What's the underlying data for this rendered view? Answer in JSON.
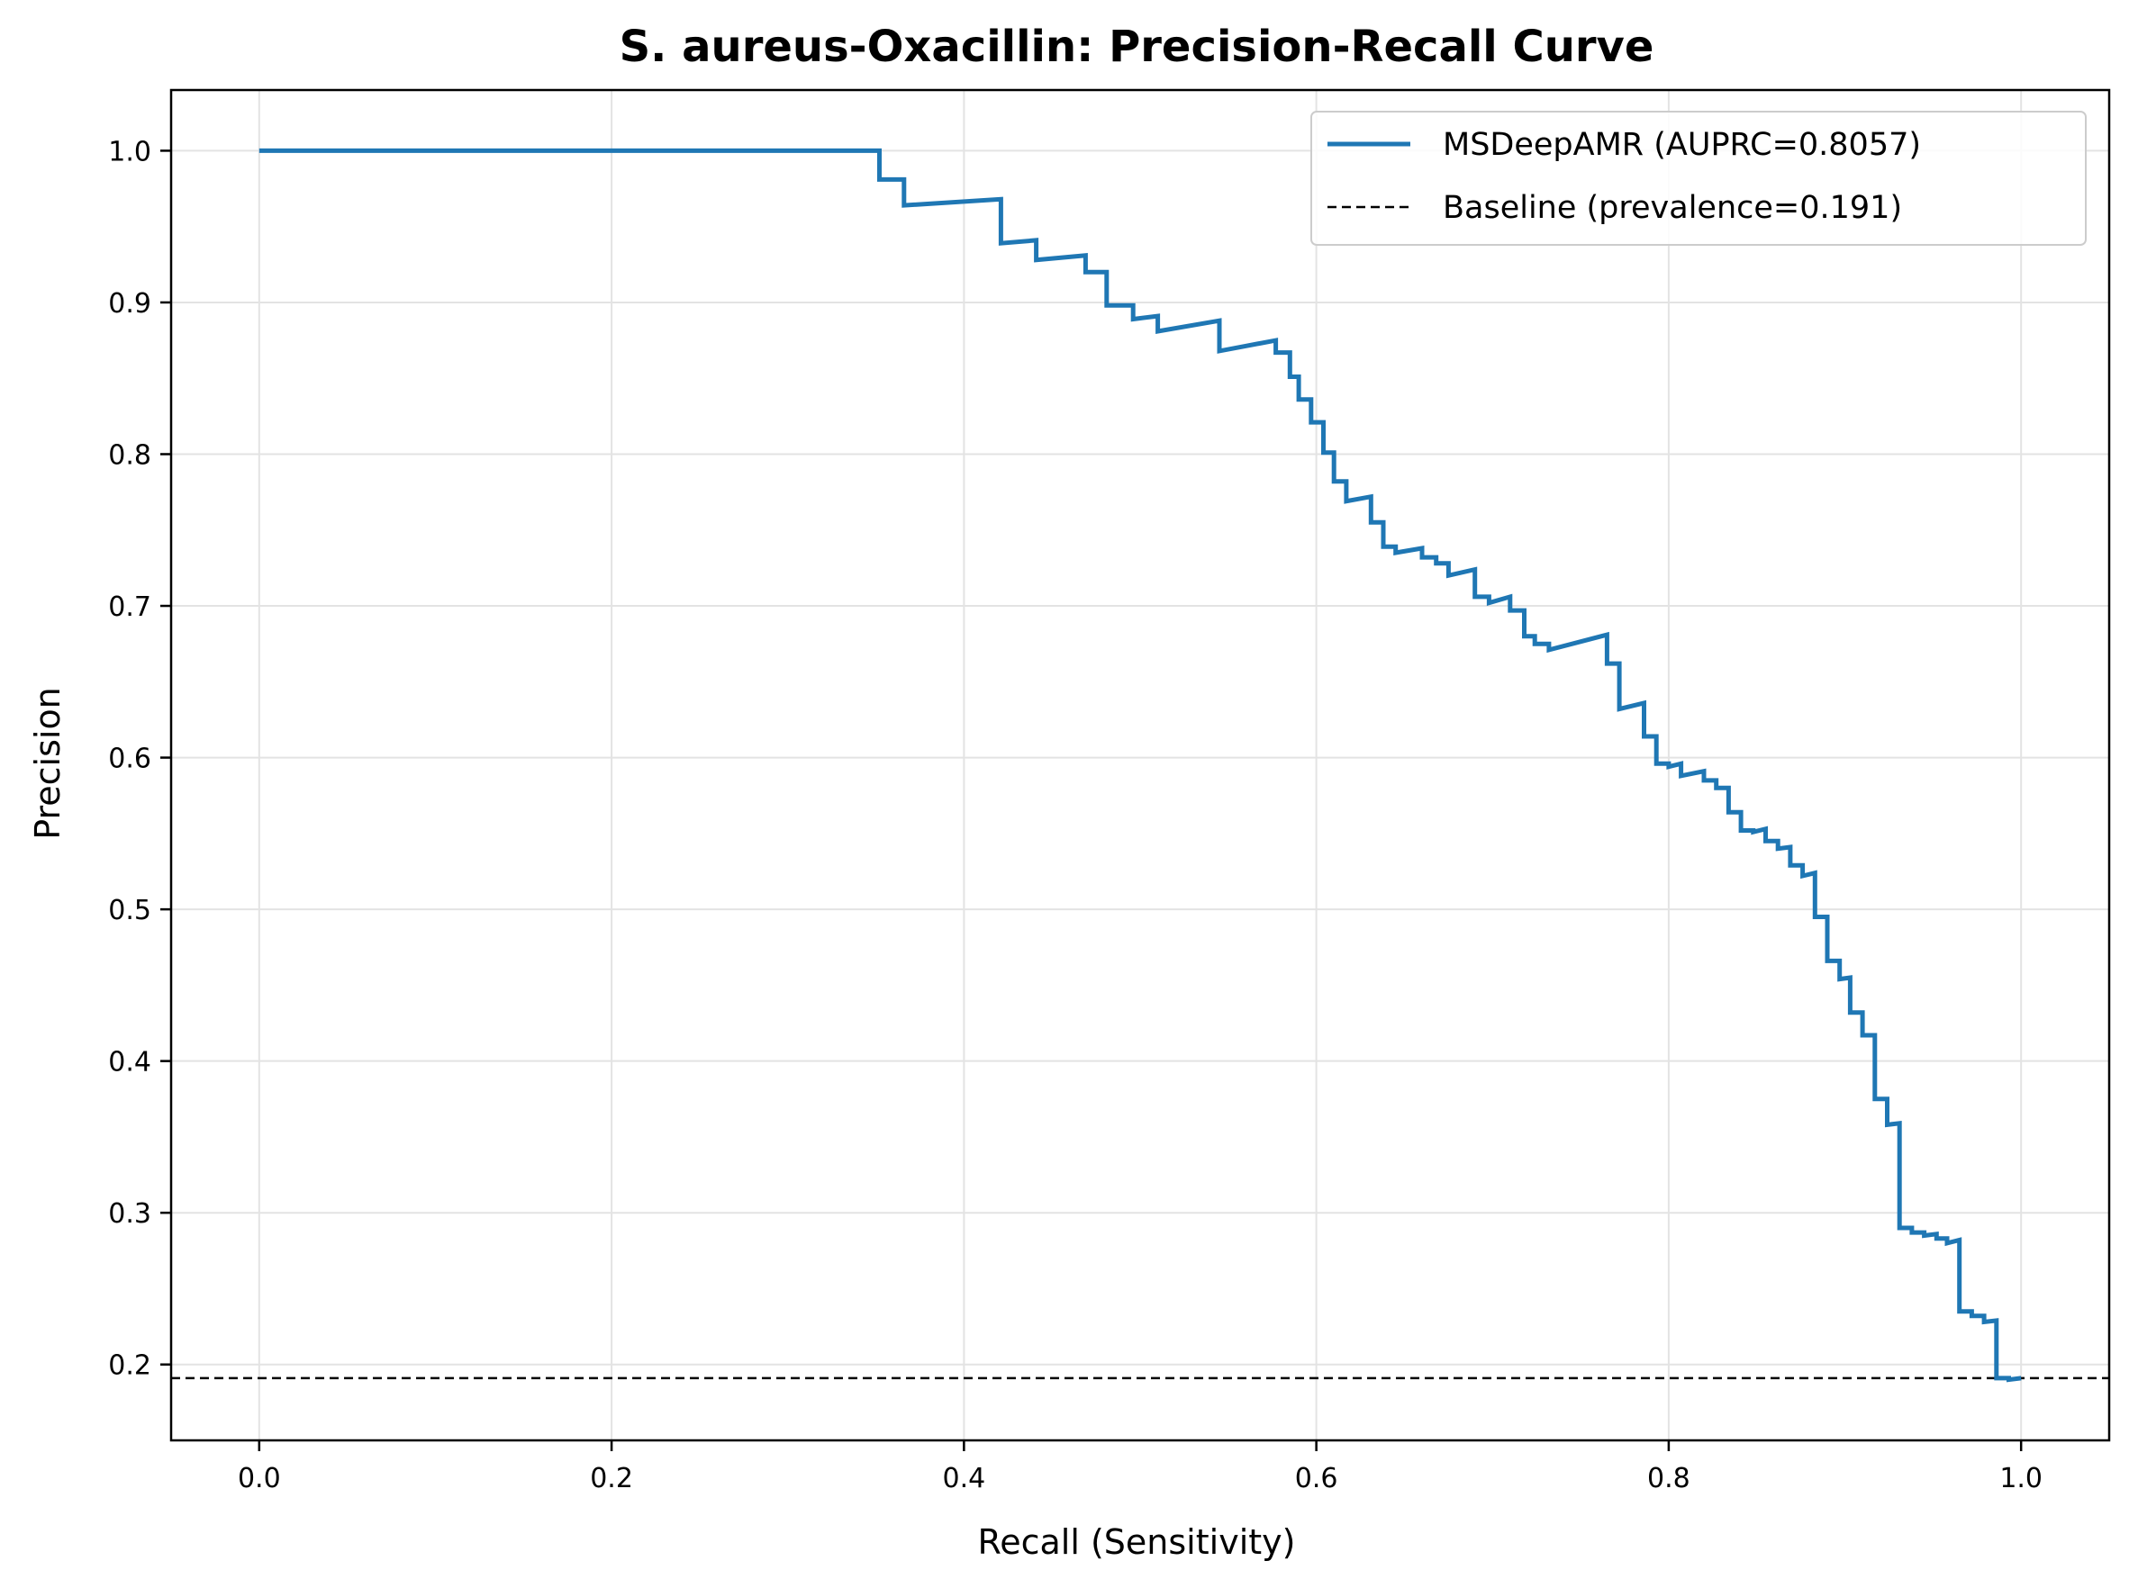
{
  "chart_data": {
    "type": "line",
    "title": "S. aureus-Oxacillin: Precision-Recall Curve",
    "xlabel": "Recall (Sensitivity)",
    "ylabel": "Precision",
    "xlim": [
      -0.05,
      1.05
    ],
    "ylim": [
      0.15,
      1.04
    ],
    "xticks": [
      0.0,
      0.2,
      0.4,
      0.6,
      0.8,
      1.0
    ],
    "xtick_labels": [
      "0.0",
      "0.2",
      "0.4",
      "0.6",
      "0.8",
      "1.0"
    ],
    "yticks": [
      0.2,
      0.3,
      0.4,
      0.5,
      0.6,
      0.7,
      0.8,
      0.9,
      1.0
    ],
    "ytick_labels": [
      "0.2",
      "0.3",
      "0.4",
      "0.5",
      "0.6",
      "0.7",
      "0.8",
      "0.9",
      "1.0"
    ],
    "grid": true,
    "legend_position": "top-right",
    "series": [
      {
        "name": "MSDeepAMR (AUPRC=0.8057)",
        "color": "#1f77b4",
        "style": "solid",
        "points": [
          [
            0.0,
            1.0
          ],
          [
            0.352,
            1.0
          ],
          [
            0.352,
            0.981
          ],
          [
            0.366,
            0.981
          ],
          [
            0.366,
            0.964
          ],
          [
            0.421,
            0.968
          ],
          [
            0.421,
            0.939
          ],
          [
            0.441,
            0.941
          ],
          [
            0.441,
            0.928
          ],
          [
            0.469,
            0.931
          ],
          [
            0.469,
            0.92
          ],
          [
            0.481,
            0.92
          ],
          [
            0.481,
            0.898
          ],
          [
            0.496,
            0.898
          ],
          [
            0.496,
            0.889
          ],
          [
            0.51,
            0.891
          ],
          [
            0.51,
            0.881
          ],
          [
            0.545,
            0.888
          ],
          [
            0.545,
            0.868
          ],
          [
            0.577,
            0.875
          ],
          [
            0.577,
            0.867
          ],
          [
            0.585,
            0.867
          ],
          [
            0.585,
            0.851
          ],
          [
            0.59,
            0.851
          ],
          [
            0.59,
            0.836
          ],
          [
            0.597,
            0.836
          ],
          [
            0.597,
            0.821
          ],
          [
            0.604,
            0.821
          ],
          [
            0.604,
            0.801
          ],
          [
            0.61,
            0.801
          ],
          [
            0.61,
            0.782
          ],
          [
            0.617,
            0.782
          ],
          [
            0.617,
            0.769
          ],
          [
            0.631,
            0.772
          ],
          [
            0.631,
            0.755
          ],
          [
            0.638,
            0.755
          ],
          [
            0.638,
            0.739
          ],
          [
            0.645,
            0.739
          ],
          [
            0.645,
            0.735
          ],
          [
            0.66,
            0.738
          ],
          [
            0.66,
            0.732
          ],
          [
            0.668,
            0.732
          ],
          [
            0.668,
            0.728
          ],
          [
            0.675,
            0.728
          ],
          [
            0.675,
            0.72
          ],
          [
            0.69,
            0.724
          ],
          [
            0.69,
            0.706
          ],
          [
            0.698,
            0.706
          ],
          [
            0.698,
            0.702
          ],
          [
            0.71,
            0.706
          ],
          [
            0.71,
            0.697
          ],
          [
            0.718,
            0.697
          ],
          [
            0.718,
            0.68
          ],
          [
            0.724,
            0.68
          ],
          [
            0.724,
            0.675
          ],
          [
            0.732,
            0.675
          ],
          [
            0.732,
            0.671
          ],
          [
            0.765,
            0.681
          ],
          [
            0.765,
            0.662
          ],
          [
            0.772,
            0.662
          ],
          [
            0.772,
            0.632
          ],
          [
            0.786,
            0.636
          ],
          [
            0.786,
            0.614
          ],
          [
            0.793,
            0.614
          ],
          [
            0.793,
            0.596
          ],
          [
            0.8,
            0.596
          ],
          [
            0.8,
            0.594
          ],
          [
            0.807,
            0.596
          ],
          [
            0.807,
            0.588
          ],
          [
            0.82,
            0.591
          ],
          [
            0.82,
            0.585
          ],
          [
            0.827,
            0.585
          ],
          [
            0.827,
            0.58
          ],
          [
            0.834,
            0.58
          ],
          [
            0.834,
            0.564
          ],
          [
            0.841,
            0.564
          ],
          [
            0.841,
            0.552
          ],
          [
            0.848,
            0.552
          ],
          [
            0.848,
            0.551
          ],
          [
            0.855,
            0.553
          ],
          [
            0.855,
            0.545
          ],
          [
            0.862,
            0.545
          ],
          [
            0.862,
            0.54
          ],
          [
            0.869,
            0.541
          ],
          [
            0.869,
            0.529
          ],
          [
            0.876,
            0.529
          ],
          [
            0.876,
            0.522
          ],
          [
            0.883,
            0.524
          ],
          [
            0.883,
            0.495
          ],
          [
            0.89,
            0.495
          ],
          [
            0.89,
            0.466
          ],
          [
            0.897,
            0.466
          ],
          [
            0.897,
            0.454
          ],
          [
            0.903,
            0.455
          ],
          [
            0.903,
            0.432
          ],
          [
            0.91,
            0.432
          ],
          [
            0.91,
            0.417
          ],
          [
            0.917,
            0.417
          ],
          [
            0.917,
            0.375
          ],
          [
            0.924,
            0.375
          ],
          [
            0.924,
            0.358
          ],
          [
            0.931,
            0.359
          ],
          [
            0.931,
            0.29
          ],
          [
            0.938,
            0.29
          ],
          [
            0.938,
            0.287
          ],
          [
            0.945,
            0.287
          ],
          [
            0.945,
            0.285
          ],
          [
            0.952,
            0.286
          ],
          [
            0.952,
            0.283
          ],
          [
            0.958,
            0.283
          ],
          [
            0.958,
            0.28
          ],
          [
            0.965,
            0.282
          ],
          [
            0.965,
            0.235
          ],
          [
            0.972,
            0.235
          ],
          [
            0.972,
            0.232
          ],
          [
            0.979,
            0.232
          ],
          [
            0.979,
            0.228
          ],
          [
            0.986,
            0.229
          ],
          [
            0.986,
            0.191
          ],
          [
            0.993,
            0.191
          ],
          [
            0.993,
            0.19
          ],
          [
            1.0,
            0.191
          ]
        ]
      },
      {
        "name": "Baseline (prevalence=0.191)",
        "color": "#000000",
        "style": "dashed",
        "hline": 0.191
      }
    ]
  }
}
